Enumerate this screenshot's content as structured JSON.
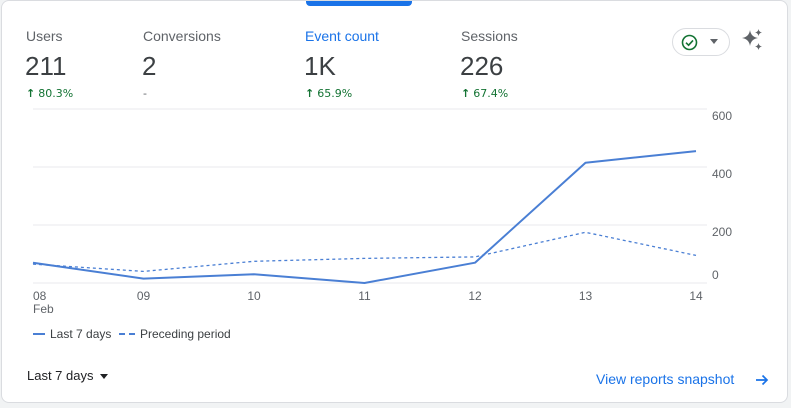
{
  "metrics": [
    {
      "label": "Users",
      "value": "211",
      "change": "80.3%",
      "trend": "up"
    },
    {
      "label": "Conversions",
      "value": "2",
      "change": "-",
      "trend": "none"
    },
    {
      "label": "Event count",
      "value": "1K",
      "change": "65.9%",
      "trend": "up"
    },
    {
      "label": "Sessions",
      "value": "226",
      "change": "67.4%",
      "trend": "up"
    }
  ],
  "active_metric": "Event count",
  "icons": {
    "status": "check-circle-icon",
    "insights": "sparkle-icon",
    "link_arrow": "arrow-right-icon"
  },
  "colors": {
    "accent": "#1a73e8",
    "positive": "#137333",
    "series": "#4a7fd4"
  },
  "chart_data": {
    "type": "line",
    "categories": [
      "08",
      "09",
      "10",
      "11",
      "12",
      "13",
      "14"
    ],
    "category_sublabels": [
      "Feb",
      "",
      "",
      "",
      "",
      "",
      ""
    ],
    "series": [
      {
        "name": "Last 7 days",
        "style": "solid",
        "values": [
          70,
          15,
          30,
          0,
          70,
          415,
          455
        ]
      },
      {
        "name": "Preceding period",
        "style": "dashed",
        "values": [
          65,
          40,
          75,
          85,
          90,
          175,
          95
        ]
      }
    ],
    "y_ticks": [
      {
        "value": 0,
        "label": "0"
      },
      {
        "value": 200,
        "label": "200"
      },
      {
        "value": 400,
        "label": "400"
      },
      {
        "value": 600,
        "label": "600"
      }
    ],
    "ylim": [
      0,
      600
    ],
    "grid": true,
    "y_axis_side": "right"
  },
  "legend": [
    {
      "label": "Last 7 days",
      "style": "solid"
    },
    {
      "label": "Preceding period",
      "style": "dashed"
    }
  ],
  "footer": {
    "range_label": "Last 7 days",
    "link_label": "View reports snapshot"
  }
}
